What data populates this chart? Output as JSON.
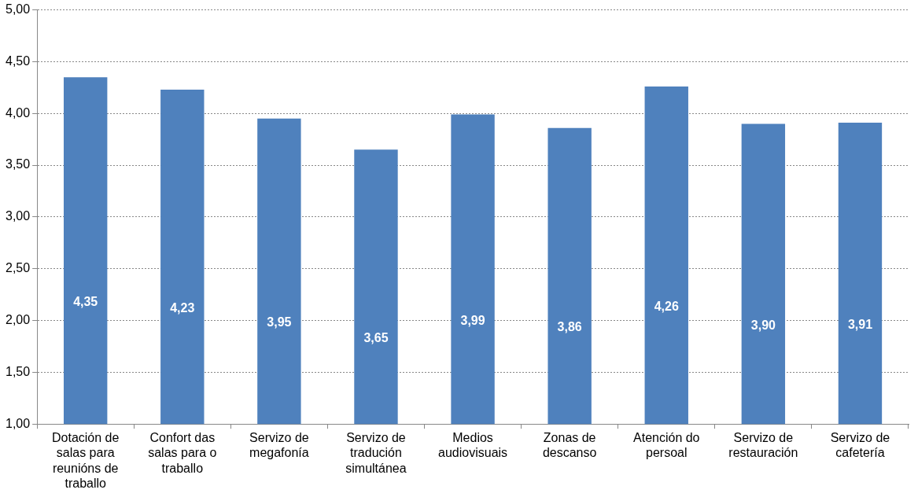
{
  "chart_data": {
    "type": "bar",
    "categories": [
      "Dotación de salas para reunións de traballo",
      "Confort das salas para o traballo",
      "Servizo de megafonía",
      "Servizo de tradución simultánea",
      "Medios audiovisuais",
      "Zonas de descanso",
      "Atención do persoal",
      "Servizo de restauración",
      "Servizo de cafetería"
    ],
    "values": [
      4.35,
      4.23,
      3.95,
      3.65,
      3.99,
      3.86,
      4.26,
      3.9,
      3.91
    ],
    "value_labels": [
      "4,35",
      "4,23",
      "3,95",
      "3,65",
      "3,99",
      "3,86",
      "4,26",
      "3,90",
      "3,91"
    ],
    "color": "#4f81bd",
    "ylim": [
      1,
      5
    ],
    "yticks": [
      {
        "value": 1,
        "label": "1,00"
      },
      {
        "value": 1.5,
        "label": "1,50"
      },
      {
        "value": 2,
        "label": "2,00"
      },
      {
        "value": 2.5,
        "label": "2,50"
      },
      {
        "value": 3,
        "label": "3,00"
      },
      {
        "value": 3.5,
        "label": "3,50"
      },
      {
        "value": 4,
        "label": "4,00"
      },
      {
        "value": 4.5,
        "label": "4,50"
      },
      {
        "value": 5,
        "label": "5,00"
      }
    ],
    "grid": "y",
    "legend": false
  }
}
